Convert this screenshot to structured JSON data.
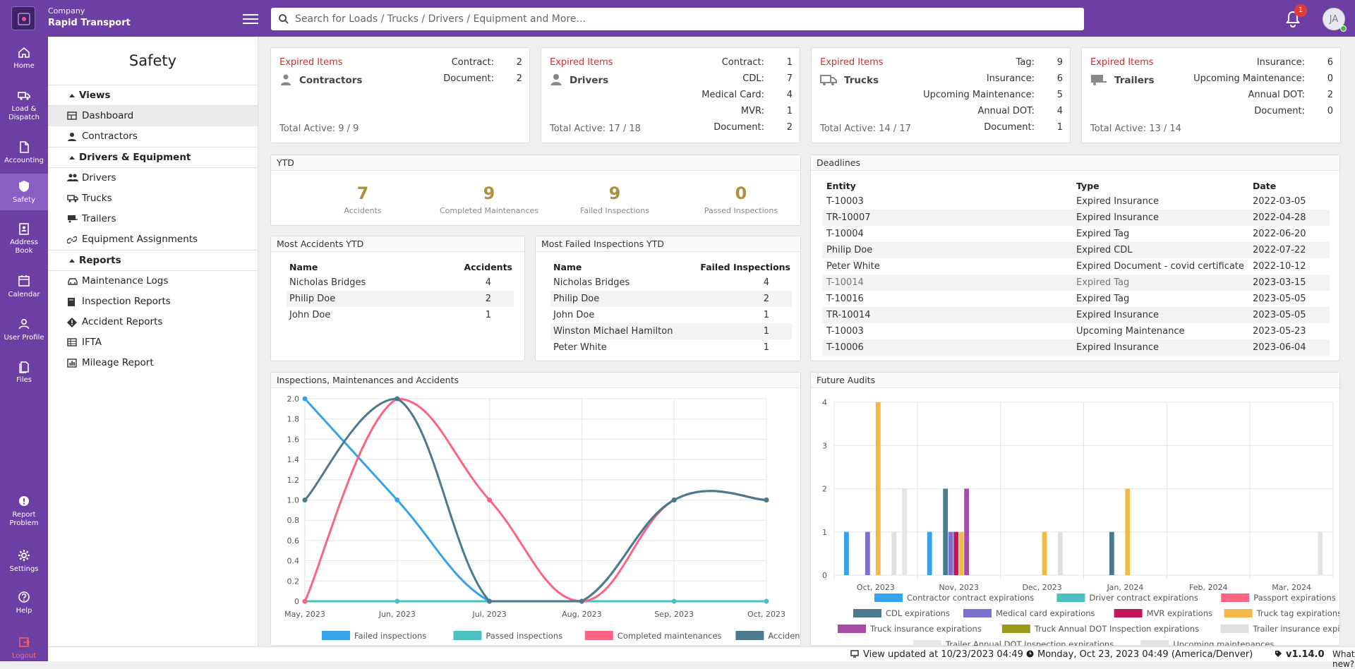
{
  "header": {
    "company_label": "Company",
    "company_name": "Rapid Transport",
    "search_placeholder": "Search for Loads / Trucks / Drivers / Equipment and More...",
    "notification_count": "1",
    "user_initials": "JA"
  },
  "leftnav": [
    {
      "label1": "Home",
      "label2": "",
      "icon": "home-icon"
    },
    {
      "label1": "Load &",
      "label2": "Dispatch",
      "icon": "truck-icon"
    },
    {
      "label1": "Accounting",
      "label2": "",
      "icon": "document-icon"
    },
    {
      "label1": "Safety",
      "label2": "",
      "icon": "shield-icon"
    },
    {
      "label1": "Address",
      "label2": "Book",
      "icon": "contact-book-icon"
    },
    {
      "label1": "Calendar",
      "label2": "",
      "icon": "calendar-icon"
    },
    {
      "label1": "User Profile",
      "label2": "",
      "icon": "user-icon"
    },
    {
      "label1": "Files",
      "label2": "",
      "icon": "files-icon"
    },
    {
      "label1": "Report",
      "label2": "Problem",
      "icon": "alert-icon"
    },
    {
      "label1": "Settings",
      "label2": "",
      "icon": "gear-icon"
    },
    {
      "label1": "Help",
      "label2": "",
      "icon": "help-icon"
    },
    {
      "label1": "Logout",
      "label2": "",
      "icon": "logout-icon"
    }
  ],
  "sidebar": {
    "title": "Safety",
    "groups": {
      "views": "Views",
      "drivers_equipment": "Drivers & Equipment",
      "reports": "Reports"
    },
    "items": {
      "dashboard": "Dashboard",
      "contractors": "Contractors",
      "drivers": "Drivers",
      "trucks": "Trucks",
      "trailers": "Trailers",
      "equipment_assignments": "Equipment Assignments",
      "maintenance_logs": "Maintenance Logs",
      "inspection_reports": "Inspection Reports",
      "accident_reports": "Accident Reports",
      "ifta": "IFTA",
      "mileage_report": "Mileage Report"
    }
  },
  "expired_label": "Expired Items",
  "expired_cards": [
    {
      "entity": "Contractors",
      "total": "Total Active: 9 / 9",
      "icon": "contractor-icon",
      "rows": [
        {
          "k": "Contract:",
          "v": "2"
        },
        {
          "k": "Document:",
          "v": "2"
        }
      ]
    },
    {
      "entity": "Drivers",
      "total": "Total Active: 17 / 18",
      "icon": "driver-icon",
      "rows": [
        {
          "k": "Contract:",
          "v": "1"
        },
        {
          "k": "CDL:",
          "v": "7"
        },
        {
          "k": "Medical Card:",
          "v": "4"
        },
        {
          "k": "MVR:",
          "v": "1"
        },
        {
          "k": "Document:",
          "v": "2"
        }
      ]
    },
    {
      "entity": "Trucks",
      "total": "Total Active: 14 / 17",
      "icon": "truck-icon",
      "rows": [
        {
          "k": "Tag:",
          "v": "9"
        },
        {
          "k": "Insurance:",
          "v": "6"
        },
        {
          "k": "Upcoming Maintenance:",
          "v": "5"
        },
        {
          "k": "Annual DOT:",
          "v": "4"
        },
        {
          "k": "Document:",
          "v": "1"
        }
      ]
    },
    {
      "entity": "Trailers",
      "total": "Total Active: 13 / 14",
      "icon": "trailer-icon",
      "rows": [
        {
          "k": "Insurance:",
          "v": "6"
        },
        {
          "k": "Upcoming Maintenance:",
          "v": "0"
        },
        {
          "k": "Annual DOT:",
          "v": "2"
        },
        {
          "k": "Document:",
          "v": "0"
        }
      ]
    }
  ],
  "ytd": {
    "title": "YTD",
    "stats": [
      {
        "n": "7",
        "l": "Accidents"
      },
      {
        "n": "9",
        "l": "Completed Maintenances"
      },
      {
        "n": "9",
        "l": "Failed Inspections"
      },
      {
        "n": "0",
        "l": "Passed Inspections"
      }
    ]
  },
  "most_accidents": {
    "title": "Most Accidents YTD",
    "col_name": "Name",
    "col_value": "Accidents",
    "rows": [
      {
        "name": "Nicholas Bridges",
        "v": "4"
      },
      {
        "name": "Philip Doe",
        "v": "2"
      },
      {
        "name": "John Doe",
        "v": "1"
      }
    ]
  },
  "most_failed": {
    "title": "Most Failed Inspections YTD",
    "col_name": "Name",
    "col_value": "Failed Inspections",
    "rows": [
      {
        "name": "Nicholas Bridges",
        "v": "4"
      },
      {
        "name": "Philip Doe",
        "v": "2"
      },
      {
        "name": "John Doe",
        "v": "1"
      },
      {
        "name": "Winston Michael Hamilton",
        "v": "1"
      },
      {
        "name": "Peter White",
        "v": "1"
      }
    ]
  },
  "deadlines": {
    "title": "Deadlines",
    "col_entity": "Entity",
    "col_type": "Type",
    "col_date": "Date",
    "rows": [
      {
        "entity": "T-10003",
        "type": "Expired Insurance",
        "date": "2022-03-05"
      },
      {
        "entity": "TR-10007",
        "type": "Expired Insurance",
        "date": "2022-04-28"
      },
      {
        "entity": "T-10004",
        "type": "Expired Tag",
        "date": "2022-06-20"
      },
      {
        "entity": "Philip Doe",
        "type": "Expired CDL",
        "date": "2022-07-22"
      },
      {
        "entity": "Peter White",
        "type": "Expired Document - covid certificate",
        "date": "2022-10-12"
      },
      {
        "entity": "T-10014",
        "type": "Expired Tag",
        "date": "2023-03-15"
      },
      {
        "entity": "T-10016",
        "type": "Expired Tag",
        "date": "2023-05-05"
      },
      {
        "entity": "TR-10014",
        "type": "Expired Insurance",
        "date": "2023-05-05"
      },
      {
        "entity": "T-10003",
        "type": "Upcoming Maintenance",
        "date": "2023-05-23"
      },
      {
        "entity": "T-10006",
        "type": "Expired Insurance",
        "date": "2023-06-04"
      }
    ]
  },
  "chart_data": [
    {
      "type": "line",
      "title": "Inspections, Maintenances and Accidents",
      "categories": [
        "May, 2023",
        "Jun, 2023",
        "Jul, 2023",
        "Aug, 2023",
        "Sep, 2023",
        "Oct, 2023"
      ],
      "ylim": [
        0,
        2.0
      ],
      "yticks": [
        "0",
        "0.2",
        "0.4",
        "0.6",
        "0.8",
        "1.0",
        "1.2",
        "1.4",
        "1.6",
        "1.8",
        "2.0"
      ],
      "grid": true,
      "legend": "bottom",
      "series": [
        {
          "name": "Failed inspections",
          "color": "#36a2eb",
          "values": [
            2,
            1,
            0,
            0,
            1,
            1
          ]
        },
        {
          "name": "Passed inspections",
          "color": "#4bc0c0",
          "values": [
            0,
            0,
            0,
            0,
            0,
            0
          ]
        },
        {
          "name": "Completed maintenances",
          "color": "#ff6384",
          "values": [
            0,
            2,
            1,
            0,
            1,
            1
          ]
        },
        {
          "name": "Accidents",
          "color": "#4a7a8c",
          "values": [
            1,
            2,
            0,
            0,
            1,
            1
          ]
        }
      ]
    },
    {
      "type": "bar",
      "title": "Future Audits",
      "categories": [
        "Oct, 2023",
        "Nov, 2023",
        "Dec, 2023",
        "Jan, 2024",
        "Feb, 2024",
        "Mar, 2024"
      ],
      "ylim": [
        0,
        4
      ],
      "yticks": [
        "0",
        "1",
        "2",
        "3",
        "4"
      ],
      "grid": true,
      "legend": "bottom",
      "series": [
        {
          "name": "Contractor contract expirations",
          "color": "#36a2eb",
          "values": [
            1,
            1,
            0,
            0,
            0,
            0
          ]
        },
        {
          "name": "Driver contract expirations",
          "color": "#4bc0c0",
          "values": [
            0,
            0,
            0,
            0,
            0,
            0
          ]
        },
        {
          "name": "Passport expirations",
          "color": "#ff6384",
          "values": [
            0,
            0,
            0,
            0,
            0,
            0
          ]
        },
        {
          "name": "CDL expirations",
          "color": "#4a7a8c",
          "values": [
            0,
            2,
            0,
            1,
            0,
            0
          ]
        },
        {
          "name": "Medical card expirations",
          "color": "#7b6fd0",
          "values": [
            1,
            1,
            0,
            0,
            0,
            0
          ]
        },
        {
          "name": "MVR expirations",
          "color": "#c2185b",
          "values": [
            0,
            1,
            0,
            0,
            0,
            0
          ]
        },
        {
          "name": "Truck tag expirations",
          "color": "#f5b94a",
          "values": [
            4,
            1,
            1,
            2,
            0,
            0
          ]
        },
        {
          "name": "Truck insurance expirations",
          "color": "#a64ca6",
          "values": [
            0,
            2,
            0,
            0,
            0,
            0
          ]
        },
        {
          "name": "Truck Annual DOT Inspection expirations",
          "color": "#9a9a1a",
          "values": [
            0,
            0,
            0,
            0,
            0,
            0
          ]
        },
        {
          "name": "Trailer insurance expirations",
          "color": "#e0e0e0",
          "values": [
            1,
            0,
            1,
            0,
            0,
            0
          ]
        },
        {
          "name": "Trailer Annual DOT Inspection expirations",
          "color": "#e8e8e8",
          "values": [
            0,
            0,
            0,
            0,
            0,
            0
          ]
        },
        {
          "name": "Upcoming maintenances",
          "color": "#e4e4e4",
          "values": [
            2,
            0,
            0,
            0,
            0,
            1
          ]
        }
      ]
    }
  ],
  "statusbar": {
    "updated": "View updated at 10/23/2023 04:49",
    "datetime": "Monday, Oct 23, 2023 04:49 (America/Denver)",
    "version": "v1.14.0",
    "whats_new": "What's new?"
  }
}
